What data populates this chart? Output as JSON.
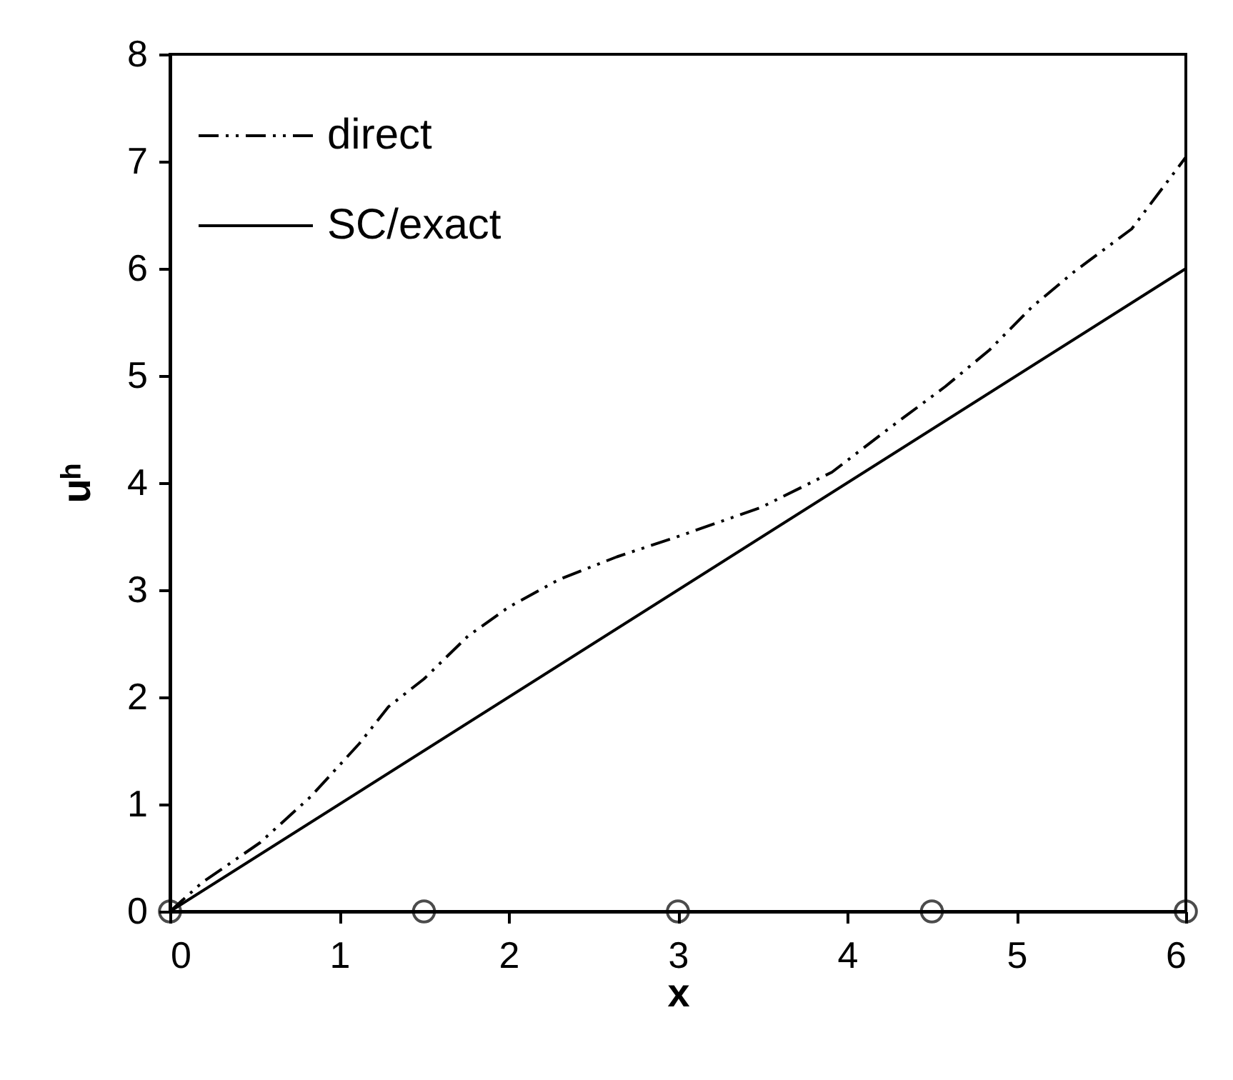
{
  "chart_data": {
    "type": "line",
    "xlabel": "x",
    "ylabel": "uʰ",
    "xlim": [
      0,
      6
    ],
    "ylim": [
      0,
      8
    ],
    "xticks": [
      0,
      1,
      2,
      3,
      4,
      5,
      6
    ],
    "yticks": [
      0,
      1,
      2,
      3,
      4,
      5,
      6,
      7,
      8
    ],
    "grid": false,
    "legend": "top left",
    "series": [
      {
        "name": "direct",
        "color": "#000000",
        "line_style": "dashdot",
        "x": [
          0,
          0.19,
          0.53,
          0.83,
          1.12,
          1.29,
          1.5,
          1.76,
          2.0,
          2.3,
          2.64,
          3.02,
          3.49,
          3.91,
          4.24,
          4.58,
          4.84,
          5.09,
          5.34,
          5.68,
          6
        ],
        "values": [
          0,
          0.27,
          0.64,
          1.07,
          1.57,
          1.91,
          2.17,
          2.57,
          2.84,
          3.1,
          3.31,
          3.51,
          3.77,
          4.1,
          4.5,
          4.9,
          5.24,
          5.64,
          5.97,
          6.37,
          7.04
        ]
      },
      {
        "name": "SC/exact",
        "color": "#000000",
        "line_style": "solid",
        "x": [
          0,
          6
        ],
        "values": [
          0,
          6
        ]
      },
      {
        "type": "scatter",
        "marker": "circle",
        "color": "#000000",
        "x": [
          0,
          1.5,
          3,
          4.5,
          6
        ],
        "values": [
          0,
          0,
          0,
          0,
          0
        ]
      }
    ]
  }
}
